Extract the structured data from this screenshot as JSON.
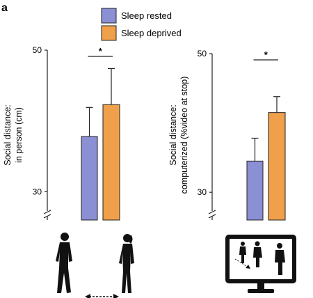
{
  "panel_label": "a",
  "legend": [
    {
      "label": "Sleep rested",
      "color": "#8b8fd4"
    },
    {
      "label": "Sleep deprived",
      "color": "#f0a04b"
    }
  ],
  "chart_data": [
    {
      "type": "bar",
      "ylabel_line1": "Social distance:",
      "ylabel_line2": "in person (cm)",
      "yticks": [
        30,
        50
      ],
      "ylim": [
        26,
        50
      ],
      "axis_break": true,
      "significance": "*",
      "series": [
        {
          "name": "Sleep rested",
          "value": 37.8,
          "error": 4.1,
          "color": "#8b8fd4"
        },
        {
          "name": "Sleep deprived",
          "value": 42.3,
          "error": 5.1,
          "color": "#f0a04b"
        }
      ]
    },
    {
      "type": "bar",
      "ylabel_line1": "Social distance:",
      "ylabel_line2": "computerized (%video at stop)",
      "yticks": [
        30,
        50
      ],
      "ylim": [
        26,
        50
      ],
      "axis_break": true,
      "significance": "*",
      "series": [
        {
          "name": "Sleep rested",
          "value": 34.5,
          "error": 3.3,
          "color": "#8b8fd4"
        },
        {
          "name": "Sleep deprived",
          "value": 41.5,
          "error": 2.3,
          "color": "#f0a04b"
        }
      ]
    }
  ],
  "icons": {
    "left": "two-people-walking-icon",
    "right": "monitor-with-people-icon"
  }
}
